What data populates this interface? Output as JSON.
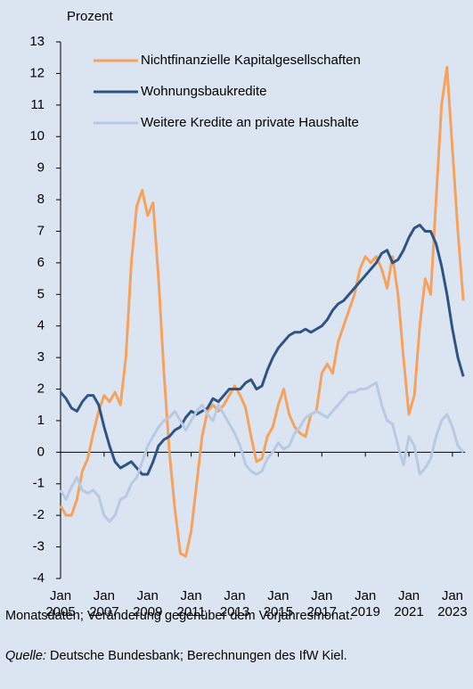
{
  "chart_data": {
    "type": "line",
    "y_label": "Prozent",
    "note": "Monatsdaten; Veränderung gegenüber dem Vorjahresmonat.",
    "source_label": "Quelle:",
    "source_text": "Deutsche Bundesbank; Berechnungen des IfW Kiel.",
    "ylim": [
      -4,
      13
    ],
    "yticks": [
      -4,
      -3,
      -2,
      -1,
      0,
      1,
      2,
      3,
      4,
      5,
      6,
      7,
      8,
      9,
      10,
      11,
      12,
      13
    ],
    "xlim": [
      "2005-01",
      "2023-08"
    ],
    "xticks": [
      {
        "value": "2005-01",
        "label": "Jan 2005"
      },
      {
        "value": "2007-01",
        "label": "Jan 2007"
      },
      {
        "value": "2009-01",
        "label": "Jan 2009"
      },
      {
        "value": "2011-01",
        "label": "Jan 2011"
      },
      {
        "value": "2013-01",
        "label": "Jan 2013"
      },
      {
        "value": "2015-01",
        "label": "Jan 2015"
      },
      {
        "value": "2017-01",
        "label": "Jan 2017"
      },
      {
        "value": "2019-01",
        "label": "Jan 2019"
      },
      {
        "value": "2021-01",
        "label": "Jan 2021"
      },
      {
        "value": "2023-01",
        "label": "Jan 2023"
      }
    ],
    "x": [
      "2005-01",
      "2005-04",
      "2005-07",
      "2005-10",
      "2006-01",
      "2006-04",
      "2006-07",
      "2006-10",
      "2007-01",
      "2007-04",
      "2007-07",
      "2007-10",
      "2008-01",
      "2008-04",
      "2008-07",
      "2008-10",
      "2009-01",
      "2009-04",
      "2009-07",
      "2009-10",
      "2010-01",
      "2010-04",
      "2010-07",
      "2010-10",
      "2011-01",
      "2011-04",
      "2011-07",
      "2011-10",
      "2012-01",
      "2012-04",
      "2012-07",
      "2012-10",
      "2013-01",
      "2013-04",
      "2013-07",
      "2013-10",
      "2014-01",
      "2014-04",
      "2014-07",
      "2014-10",
      "2015-01",
      "2015-04",
      "2015-07",
      "2015-10",
      "2016-01",
      "2016-04",
      "2016-07",
      "2016-10",
      "2017-01",
      "2017-04",
      "2017-07",
      "2017-10",
      "2018-01",
      "2018-04",
      "2018-07",
      "2018-10",
      "2019-01",
      "2019-04",
      "2019-07",
      "2019-10",
      "2020-01",
      "2020-04",
      "2020-07",
      "2020-10",
      "2021-01",
      "2021-04",
      "2021-07",
      "2021-10",
      "2022-01",
      "2022-04",
      "2022-07",
      "2022-10",
      "2023-01",
      "2023-04",
      "2023-07"
    ],
    "series": [
      {
        "name": "Nichtfinanzielle Kapitalgesellschaften",
        "color": "#f7a25c",
        "values": [
          -1.7,
          -2.0,
          -2.0,
          -1.5,
          -0.6,
          -0.2,
          0.6,
          1.3,
          1.8,
          1.6,
          1.9,
          1.5,
          3.0,
          6.0,
          7.8,
          8.3,
          7.5,
          7.9,
          5.5,
          2.5,
          0.0,
          -1.8,
          -3.2,
          -3.3,
          -2.5,
          -1.0,
          0.5,
          1.3,
          1.5,
          1.3,
          1.5,
          1.8,
          2.1,
          1.8,
          1.4,
          0.5,
          -0.3,
          -0.2,
          0.5,
          0.8,
          1.5,
          2.0,
          1.2,
          0.8,
          0.6,
          0.5,
          1.2,
          1.3,
          2.5,
          2.8,
          2.5,
          3.5,
          4.0,
          4.5,
          5.0,
          5.8,
          6.2,
          6.0,
          6.2,
          5.8,
          5.2,
          6.2,
          5.0,
          3.0,
          1.2,
          1.8,
          4.0,
          5.5,
          5.0,
          8.0,
          11.0,
          12.2,
          9.6,
          7.0,
          4.8
        ]
      },
      {
        "name": "Wohnungsbaukredite",
        "color": "#2e5486",
        "values": [
          1.9,
          1.7,
          1.4,
          1.3,
          1.6,
          1.8,
          1.8,
          1.5,
          0.8,
          0.2,
          -0.3,
          -0.5,
          -0.4,
          -0.3,
          -0.5,
          -0.7,
          -0.7,
          -0.3,
          0.2,
          0.4,
          0.5,
          0.7,
          0.8,
          1.1,
          1.3,
          1.2,
          1.3,
          1.4,
          1.7,
          1.6,
          1.8,
          2.0,
          2.0,
          2.0,
          2.2,
          2.3,
          2.0,
          2.1,
          2.6,
          3.0,
          3.3,
          3.5,
          3.7,
          3.8,
          3.8,
          3.9,
          3.8,
          3.9,
          4.0,
          4.2,
          4.5,
          4.7,
          4.8,
          5.0,
          5.2,
          5.4,
          5.6,
          5.8,
          6.0,
          6.3,
          6.4,
          6.0,
          6.1,
          6.4,
          6.8,
          7.1,
          7.2,
          7.0,
          7.0,
          6.6,
          5.9,
          5.0,
          3.9,
          3.0,
          2.4
        ]
      },
      {
        "name": "Weitere Kredite an private Haushalte",
        "color": "#b8c9e3",
        "values": [
          -1.2,
          -1.5,
          -1.1,
          -0.8,
          -1.2,
          -1.3,
          -1.2,
          -1.4,
          -2.0,
          -2.2,
          -2.0,
          -1.5,
          -1.4,
          -1.0,
          -0.8,
          -0.3,
          0.2,
          0.5,
          0.8,
          1.0,
          1.1,
          1.3,
          1.0,
          0.7,
          1.0,
          1.3,
          1.5,
          1.2,
          1.0,
          1.5,
          1.2,
          0.9,
          0.6,
          0.2,
          -0.4,
          -0.6,
          -0.7,
          -0.6,
          -0.2,
          0.0,
          0.3,
          0.1,
          0.2,
          0.6,
          0.8,
          1.1,
          1.2,
          1.3,
          1.2,
          1.1,
          1.3,
          1.5,
          1.7,
          1.9,
          1.9,
          2.0,
          2.0,
          2.1,
          2.2,
          1.5,
          1.0,
          0.9,
          0.2,
          -0.4,
          0.5,
          0.2,
          -0.7,
          -0.5,
          -0.2,
          0.5,
          1.0,
          1.2,
          0.8,
          0.2,
          0.0
        ]
      }
    ]
  }
}
